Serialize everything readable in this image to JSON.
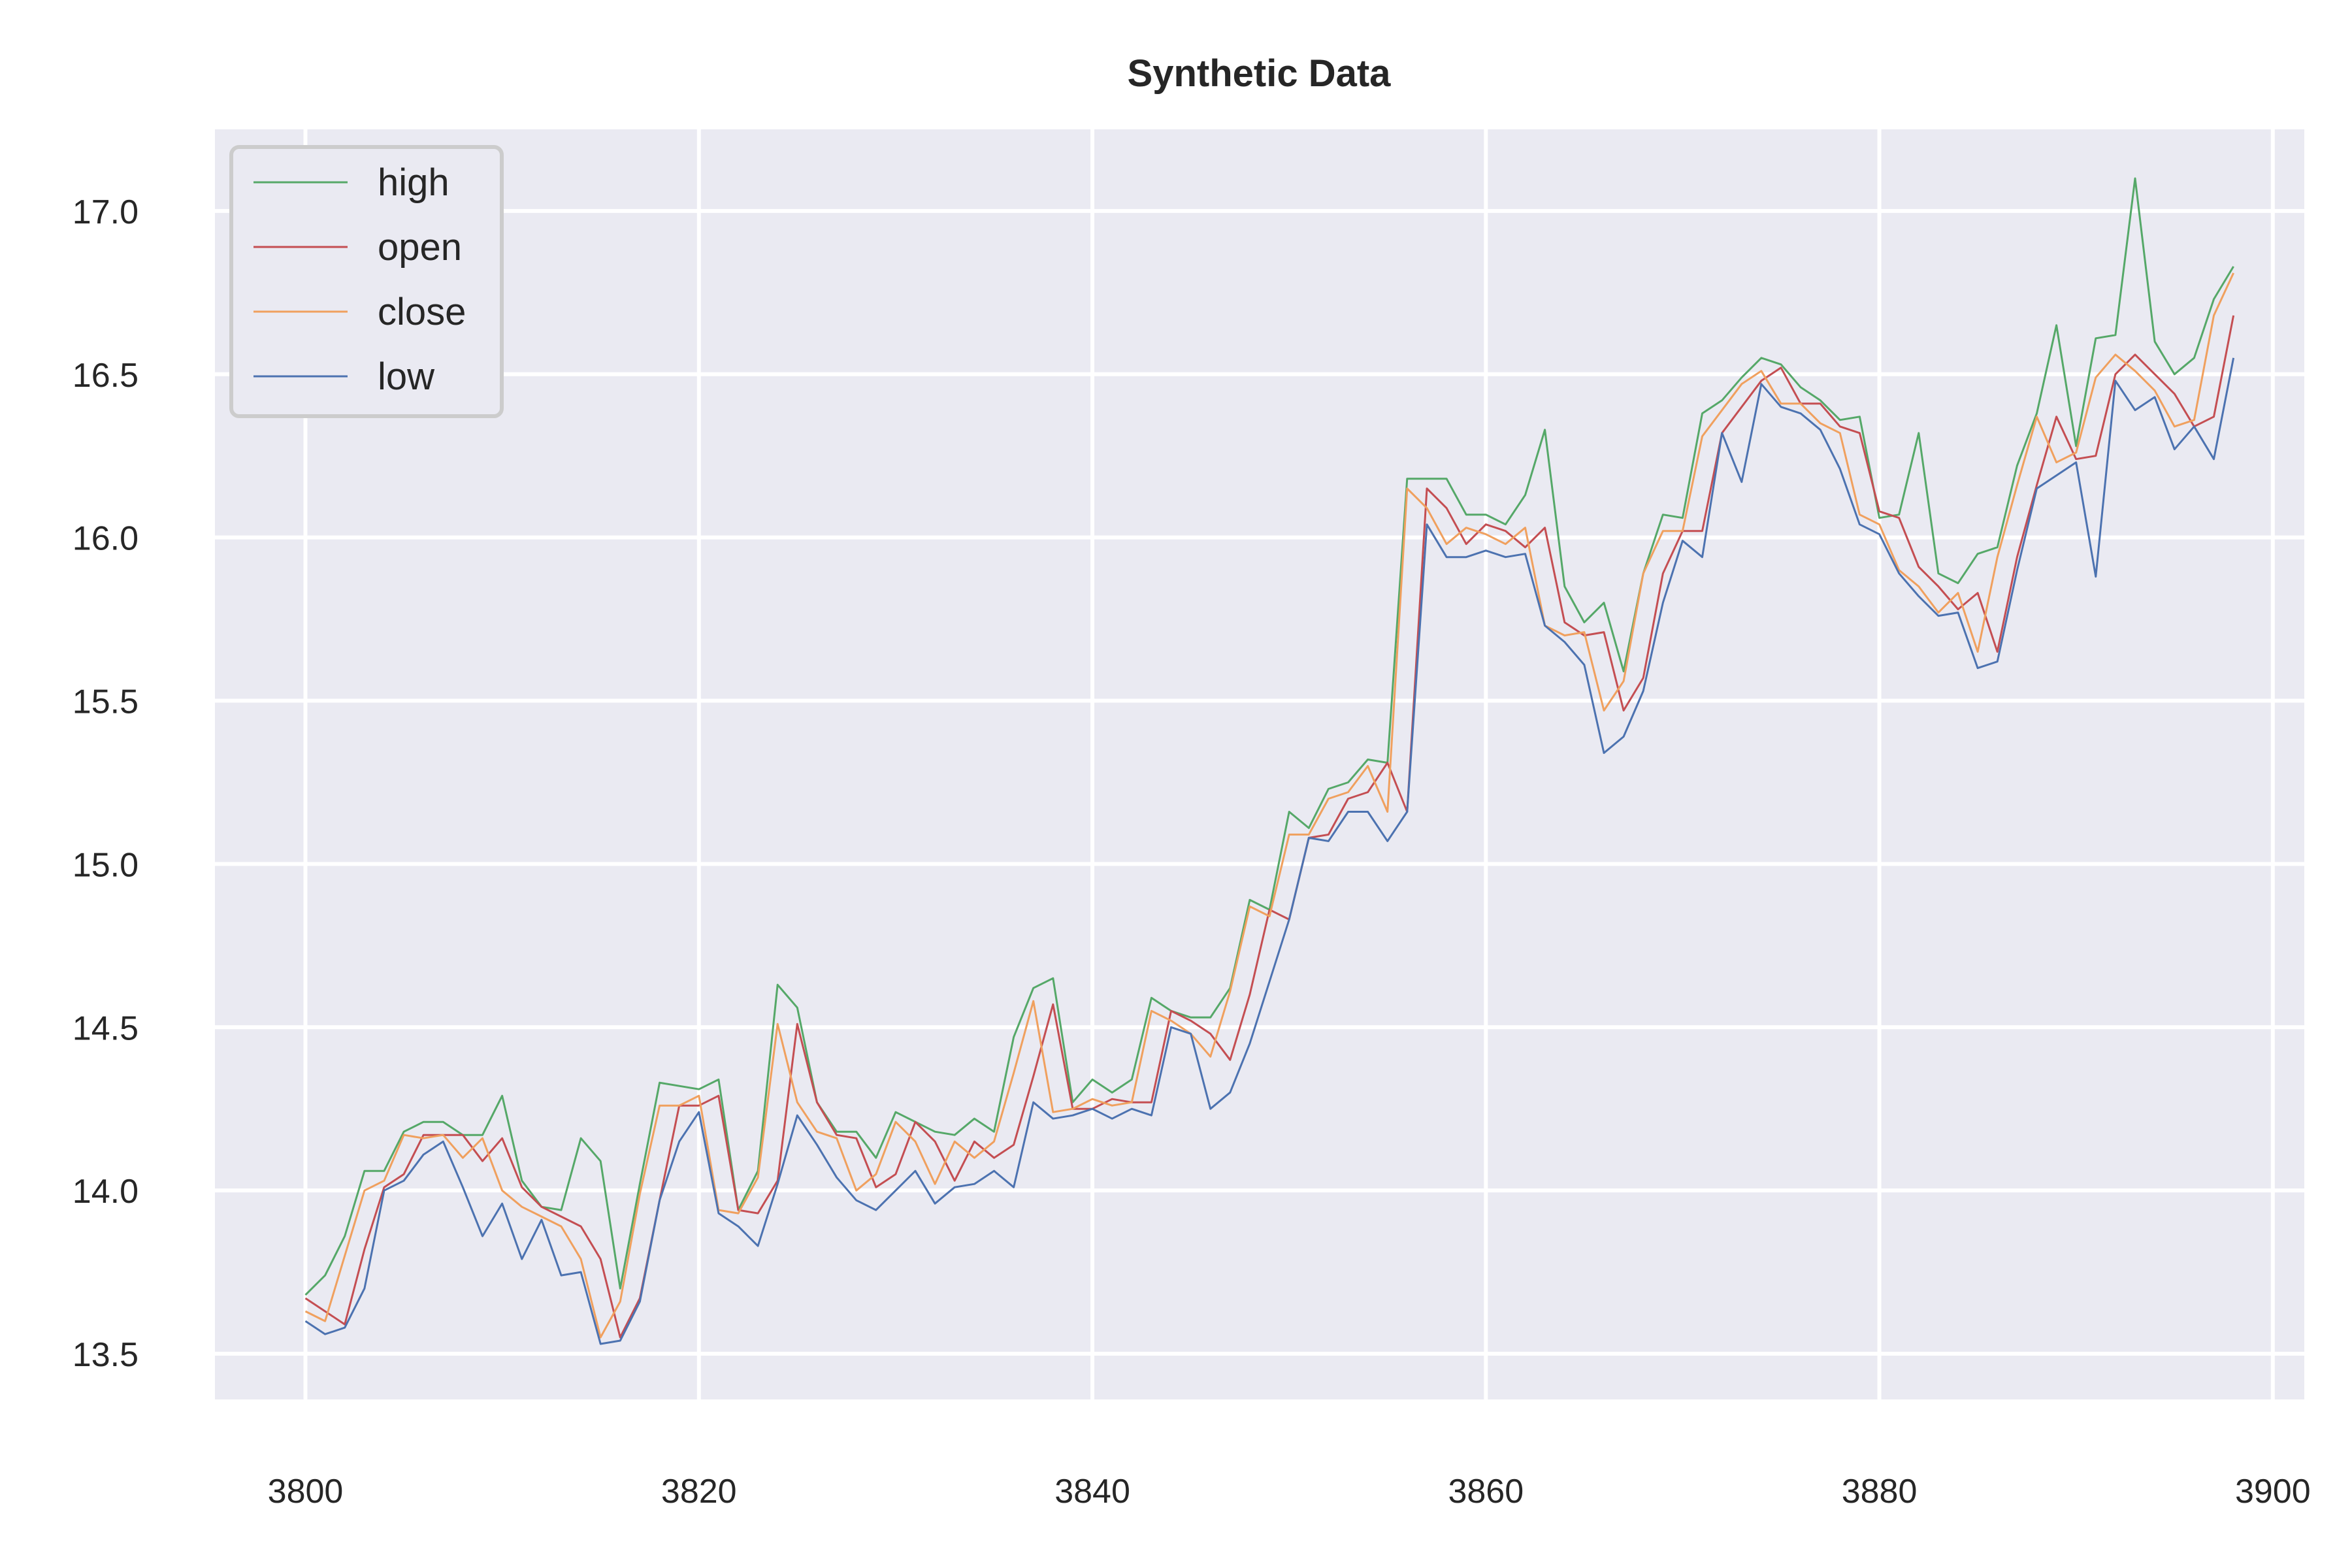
{
  "chart_data": {
    "type": "line",
    "title": "Synthetic Data",
    "xlabel": "",
    "ylabel": "",
    "xlim": [
      3795.4,
      3901.6
    ],
    "ylim": [
      13.36,
      17.25
    ],
    "x_ticks": [
      3800,
      3820,
      3840,
      3860,
      3880,
      3900
    ],
    "x_tick_labels": [
      "3800",
      "3820",
      "3840",
      "3860",
      "3880",
      "3900"
    ],
    "y_ticks": [
      13.5,
      14.0,
      14.5,
      15.0,
      15.5,
      16.0,
      16.5,
      17.0
    ],
    "y_tick_labels": [
      "13.5",
      "14.0",
      "14.5",
      "15.0",
      "15.5",
      "16.0",
      "16.5",
      "17.0"
    ],
    "grid": true,
    "legend_position": "top-left",
    "x_start": 3800,
    "series": [
      {
        "name": "high",
        "color": "#55a868",
        "values": [
          13.68,
          13.74,
          13.86,
          14.06,
          14.06,
          14.18,
          14.21,
          14.21,
          14.17,
          14.17,
          14.29,
          14.03,
          13.95,
          13.94,
          14.16,
          14.09,
          13.7,
          14.02,
          14.33,
          14.32,
          14.31,
          14.34,
          13.94,
          14.06,
          14.63,
          14.56,
          14.27,
          14.18,
          14.18,
          14.1,
          14.24,
          14.21,
          14.18,
          14.17,
          14.22,
          14.18,
          14.47,
          14.62,
          14.65,
          14.27,
          14.34,
          14.3,
          14.34,
          14.59,
          14.55,
          14.53,
          14.53,
          14.62,
          14.89,
          14.86,
          15.16,
          15.11,
          15.23,
          15.25,
          15.32,
          15.31,
          16.18,
          16.18,
          16.18,
          16.07,
          16.07,
          16.04,
          16.13,
          16.33,
          15.85,
          15.74,
          15.8,
          15.59,
          15.89,
          16.07,
          16.06,
          16.38,
          16.42,
          16.49,
          16.55,
          16.53,
          16.46,
          16.42,
          16.36,
          16.37,
          16.06,
          16.07,
          16.32,
          15.89,
          15.86,
          15.95,
          15.97,
          16.22,
          16.38,
          16.65,
          16.28,
          16.61,
          16.62,
          17.1,
          16.6,
          16.5,
          16.55,
          16.73,
          16.83
        ]
      },
      {
        "name": "open",
        "color": "#c44e52",
        "values": [
          13.67,
          13.63,
          13.59,
          13.82,
          14.01,
          14.05,
          14.17,
          14.17,
          14.17,
          14.09,
          14.16,
          14.01,
          13.95,
          13.92,
          13.89,
          13.79,
          13.55,
          13.67,
          13.97,
          14.26,
          14.26,
          14.29,
          13.94,
          13.93,
          14.03,
          14.51,
          14.27,
          14.17,
          14.16,
          14.01,
          14.05,
          14.21,
          14.15,
          14.03,
          14.15,
          14.1,
          14.14,
          14.35,
          14.57,
          14.25,
          14.25,
          14.28,
          14.27,
          14.27,
          14.55,
          14.52,
          14.48,
          14.4,
          14.6,
          14.86,
          14.83,
          15.08,
          15.09,
          15.2,
          15.22,
          15.31,
          15.16,
          16.15,
          16.09,
          15.98,
          16.04,
          16.02,
          15.97,
          16.03,
          15.74,
          15.7,
          15.71,
          15.47,
          15.57,
          15.89,
          16.02,
          16.02,
          16.32,
          16.4,
          16.48,
          16.52,
          16.41,
          16.41,
          16.34,
          16.32,
          16.08,
          16.06,
          15.91,
          15.85,
          15.78,
          15.83,
          15.65,
          15.94,
          16.16,
          16.37,
          16.24,
          16.25,
          16.5,
          16.56,
          16.5,
          16.44,
          16.34,
          16.37,
          16.68
        ]
      },
      {
        "name": "close",
        "color": "#f0a05e",
        "values": [
          13.63,
          13.6,
          13.8,
          14.0,
          14.03,
          14.17,
          14.16,
          14.17,
          14.1,
          14.16,
          14.0,
          13.95,
          13.92,
          13.89,
          13.79,
          13.55,
          13.66,
          13.99,
          14.26,
          14.26,
          14.29,
          13.94,
          13.93,
          14.04,
          14.51,
          14.27,
          14.18,
          14.16,
          14.0,
          14.05,
          14.21,
          14.15,
          14.02,
          14.15,
          14.1,
          14.15,
          14.36,
          14.58,
          14.24,
          14.25,
          14.28,
          14.26,
          14.27,
          14.55,
          14.52,
          14.48,
          14.41,
          14.61,
          14.87,
          14.84,
          15.09,
          15.09,
          15.2,
          15.22,
          15.3,
          15.16,
          16.15,
          16.09,
          15.98,
          16.03,
          16.01,
          15.98,
          16.03,
          15.73,
          15.7,
          15.71,
          15.47,
          15.56,
          15.89,
          16.02,
          16.02,
          16.31,
          16.39,
          16.47,
          16.51,
          16.41,
          16.41,
          16.35,
          16.32,
          16.07,
          16.04,
          15.9,
          15.85,
          15.77,
          15.83,
          15.65,
          15.94,
          16.16,
          16.37,
          16.23,
          16.26,
          16.49,
          16.56,
          16.51,
          16.45,
          16.34,
          16.36,
          16.68,
          16.81
        ]
      },
      {
        "name": "low",
        "color": "#4c72b0",
        "values": [
          13.6,
          13.56,
          13.58,
          13.7,
          14.0,
          14.03,
          14.11,
          14.15,
          14.01,
          13.86,
          13.96,
          13.79,
          13.91,
          13.74,
          13.75,
          13.53,
          13.54,
          13.66,
          13.97,
          14.15,
          14.24,
          13.93,
          13.89,
          13.83,
          14.02,
          14.23,
          14.14,
          14.04,
          13.97,
          13.94,
          14.0,
          14.06,
          13.96,
          14.01,
          14.02,
          14.06,
          14.01,
          14.27,
          14.22,
          14.23,
          14.25,
          14.22,
          14.25,
          14.23,
          14.5,
          14.48,
          14.25,
          14.3,
          14.45,
          14.64,
          14.83,
          15.08,
          15.07,
          15.16,
          15.16,
          15.07,
          15.16,
          16.04,
          15.94,
          15.94,
          15.96,
          15.94,
          15.95,
          15.73,
          15.68,
          15.61,
          15.34,
          15.39,
          15.53,
          15.8,
          15.99,
          15.94,
          16.32,
          16.17,
          16.47,
          16.4,
          16.38,
          16.33,
          16.21,
          16.04,
          16.01,
          15.89,
          15.82,
          15.76,
          15.77,
          15.6,
          15.62,
          15.9,
          16.15,
          16.19,
          16.23,
          15.88,
          16.48,
          16.39,
          16.43,
          16.27,
          16.34,
          16.24,
          16.55
        ]
      }
    ]
  }
}
